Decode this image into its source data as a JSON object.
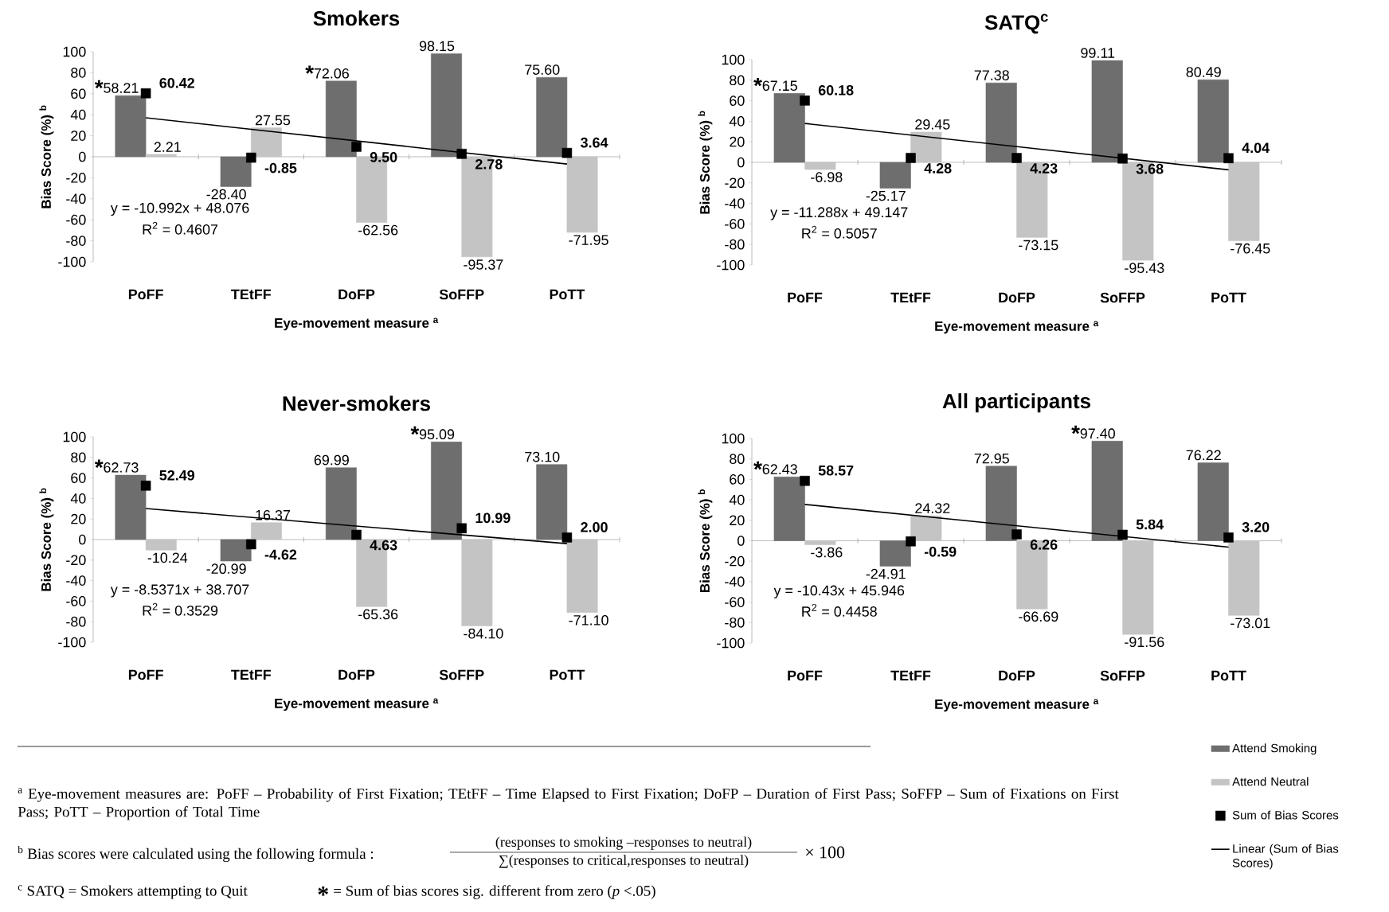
{
  "chart_data": [
    {
      "type": "bar",
      "title": "Smokers",
      "xlabel": "Eye-movement measure $^{a}$",
      "ylabel": "Bias Score (%) $^{b}$",
      "categories": [
        "PoFF",
        "TEtFF",
        "DoFP",
        "SoFFP",
        "PoTT"
      ],
      "ylim": [
        -100,
        100
      ],
      "yticks": [
        -100,
        -80,
        -60,
        -40,
        -20,
        0,
        20,
        40,
        60,
        80,
        100
      ],
      "series": [
        {
          "color": "#6e6e6e",
          "values": [
            58.21,
            -28.4,
            72.06,
            98.15,
            75.6
          ],
          "value_labels": [
            "58.21",
            "-28.40",
            "72.06",
            "98.15",
            "75.60"
          ]
        },
        {
          "color": "#c4c4c4",
          "values": [
            2.21,
            27.55,
            -62.56,
            -95.37,
            -71.95
          ],
          "value_labels": [
            "2.21",
            "27.55",
            "-62.56",
            "-95.37",
            "-71.95"
          ]
        },
        {
          "type": "scatter",
          "marker": "square",
          "color": "#000000",
          "values": [
            60.42,
            -0.85,
            9.5,
            2.78,
            3.64
          ],
          "value_labels": [
            "60.42",
            "-0.85",
            "9.50",
            "2.78",
            "3.64"
          ]
        },
        {
          "type": "line",
          "line_style": "solid",
          "color": "#000000",
          "x": [
            "PoFF",
            "PoTT"
          ],
          "values": [
            37.1,
            -6.9
          ]
        }
      ],
      "annotations": [
        "y = -10.992x + 48.076",
        "R$^{2}$ = 0.4607",
        {
          "text": "*",
          "x": "PoFF",
          "y": 58.21
        },
        {
          "text": "*",
          "x": "DoFP",
          "y": 72.06
        }
      ]
    },
    {
      "type": "bar",
      "title": "SATQ$^{c}$",
      "xlabel": "Eye-movement measure $^{a}$",
      "ylabel": "Bias Score (%) $^{b}$",
      "categories": [
        "PoFF",
        "TEtFF",
        "DoFP",
        "SoFFP",
        "PoTT"
      ],
      "ylim": [
        -100,
        100
      ],
      "yticks": [
        -100,
        -80,
        -60,
        -40,
        -20,
        0,
        20,
        40,
        60,
        80,
        100
      ],
      "series": [
        {
          "color": "#6e6e6e",
          "values": [
            67.15,
            -25.17,
            77.38,
            99.11,
            80.49
          ],
          "value_labels": [
            "67.15",
            "-25.17",
            "77.38",
            "99.11",
            "80.49"
          ]
        },
        {
          "color": "#c4c4c4",
          "values": [
            -6.98,
            29.45,
            -73.15,
            -95.43,
            -76.45
          ],
          "value_labels": [
            "-6.98",
            "29.45",
            "-73.15",
            "-95.43",
            "-76.45"
          ]
        },
        {
          "type": "scatter",
          "marker": "square",
          "color": "#000000",
          "values": [
            60.18,
            4.28,
            4.23,
            3.68,
            4.04
          ],
          "value_labels": [
            "60.18",
            "4.28",
            "4.23",
            "3.68",
            "4.04"
          ]
        },
        {
          "type": "line",
          "line_style": "solid",
          "color": "#000000",
          "x": [
            "PoFF",
            "PoTT"
          ],
          "values": [
            37.9,
            -7.3
          ]
        }
      ],
      "annotations": [
        "y = -11.288x + 49.147",
        "R$^{2}$ = 0.5057",
        {
          "text": "*",
          "x": "PoFF",
          "y": 67.15
        }
      ]
    },
    {
      "type": "bar",
      "title": "Never-smokers",
      "xlabel": "Eye-movement measure $^{a}$",
      "ylabel": "Bias Score (%) $^{b}$",
      "categories": [
        "PoFF",
        "TEtFF",
        "DoFP",
        "SoFFP",
        "PoTT"
      ],
      "ylim": [
        -100,
        100
      ],
      "yticks": [
        -100,
        -80,
        -60,
        -40,
        -20,
        0,
        20,
        40,
        60,
        80,
        100
      ],
      "series": [
        {
          "color": "#6e6e6e",
          "values": [
            62.73,
            -20.99,
            69.99,
            95.09,
            73.1
          ],
          "value_labels": [
            "62.73",
            "-20.99",
            "69.99",
            "95.09",
            "73.10"
          ]
        },
        {
          "color": "#c4c4c4",
          "values": [
            -10.24,
            16.37,
            -65.36,
            -84.1,
            -71.1
          ],
          "value_labels": [
            "-10.24",
            "16.37",
            "-65.36",
            "-84.10",
            "-71.10"
          ]
        },
        {
          "type": "scatter",
          "marker": "square",
          "color": "#000000",
          "values": [
            52.49,
            -4.62,
            4.63,
            10.99,
            2.0
          ],
          "value_labels": [
            "52.49",
            "-4.62",
            "4.63",
            "10.99",
            "2.00"
          ]
        },
        {
          "type": "line",
          "line_style": "solid",
          "color": "#000000",
          "x": [
            "PoFF",
            "PoTT"
          ],
          "values": [
            30.2,
            -4.0
          ]
        }
      ],
      "annotations": [
        "y = -8.5371x + 38.707",
        "R$^{2}$ = 0.3529",
        {
          "text": "*",
          "x": "PoFF",
          "y": 62.73
        },
        {
          "text": "*",
          "x": "SoFFP",
          "y": 95.09
        }
      ]
    },
    {
      "type": "bar",
      "title": "All participants",
      "xlabel": "Eye-movement measure $^{a}$",
      "ylabel": "Bias Score (%) $^{b}$",
      "categories": [
        "PoFF",
        "TEtFF",
        "DoFP",
        "SoFFP",
        "PoTT"
      ],
      "ylim": [
        -100,
        100
      ],
      "yticks": [
        -100,
        -80,
        -60,
        -40,
        -20,
        0,
        20,
        40,
        60,
        80,
        100
      ],
      "legend": "bottom right",
      "series": [
        {
          "name": "Attend Smoking",
          "color": "#6e6e6e",
          "values": [
            62.43,
            -24.91,
            72.95,
            97.4,
            76.22
          ],
          "value_labels": [
            "62.43",
            "-24.91",
            "72.95",
            "97.40",
            "76.22"
          ]
        },
        {
          "name": "Attend Neutral",
          "color": "#c4c4c4",
          "values": [
            -3.86,
            24.32,
            -66.69,
            -91.56,
            -73.01
          ],
          "value_labels": [
            "-3.86",
            "24.32",
            "-66.69",
            "-91.56",
            "-73.01"
          ]
        },
        {
          "name": "Sum of Bias Scores",
          "type": "scatter",
          "marker": "square",
          "color": "#000000",
          "values": [
            58.57,
            -0.59,
            6.26,
            5.84,
            3.2
          ],
          "value_labels": [
            "58.57",
            "-0.59",
            "6.26",
            "5.84",
            "3.20"
          ]
        },
        {
          "name": "Linear (Sum of Bias Scores)",
          "type": "line",
          "line_style": "solid",
          "color": "#000000",
          "x": [
            "PoFF",
            "PoTT"
          ],
          "values": [
            35.5,
            -6.2
          ]
        }
      ],
      "annotations": [
        "y = -10.43x + 45.946",
        "R$^{2}$ = 0.4458",
        {
          "text": "*",
          "x": "PoFF",
          "y": 62.43
        },
        {
          "text": "*",
          "x": "SoFFP",
          "y": 97.4
        }
      ]
    },
    {
      "type": "other",
      "annotations": [
        "$^{a}$ Eye-movement measures are: PoFF – Probability of First Fixation; TEtFF – Time Elapsed to First Fixation; DoFP – Duration of First Pass; SoFFP – Sum of Fixations on First Pass; PoTT – Proportion of Total Time",
        "$^{b}$  Bias scores were calculated using the following formula :",
        "(responses to smoking –responses to neutral)",
        "∑(responses to critical,responses to neutral)",
        "× 100",
        "$^{c}$ SATQ = Smokers attempting to Quit",
        "*",
        "= Sum of bias scores sig. different from zero (*p* <.05)"
      ]
    }
  ]
}
